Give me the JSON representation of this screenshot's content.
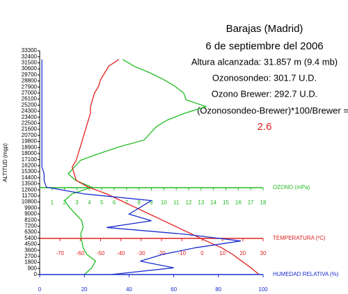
{
  "chart_data": {
    "type": "line",
    "title": "Barajas (Madrid)",
    "subtitle": "6 de septiembre del 2006",
    "annotations": [
      "Altura alcanzada: 31.857 m (9.4 mb)",
      "Ozonosondeo: 301.7  U.D.",
      "Ozono Brewer:   292.7  U.D.",
      "(Ozonosondeo-Brewer)*100/Brewer =",
      "2.6"
    ],
    "ylabel": "ALTITUD (mgp)",
    "ylim": [
      0,
      33300
    ],
    "yticks": [
      0,
      900,
      1800,
      2700,
      3600,
      4500,
      5400,
      6300,
      7200,
      8100,
      9000,
      9900,
      10800,
      11700,
      12600,
      13500,
      14400,
      15300,
      16200,
      17100,
      18000,
      18900,
      19800,
      20700,
      21600,
      22500,
      23400,
      24300,
      25200,
      26100,
      27000,
      27900,
      28800,
      29700,
      30600,
      31500,
      32400,
      33300
    ],
    "y": [
      0,
      1000,
      2000,
      3000,
      4000,
      5000,
      6000,
      7000,
      8000,
      9000,
      10000,
      11000,
      12000,
      13000,
      14000,
      15000,
      16000,
      17000,
      18000,
      19000,
      20000,
      21000,
      22000,
      23000,
      24000,
      25000,
      26000,
      27000,
      28000,
      29000,
      30000,
      31000,
      32000
    ],
    "series": [
      {
        "name": "OZONO (mPa)",
        "color": "#22bb22",
        "xlim": [
          0,
          18
        ],
        "xticks": [
          1,
          2,
          3,
          4,
          5,
          6,
          7,
          8,
          9,
          10,
          11,
          12,
          13,
          14,
          15,
          16,
          17,
          18
        ],
        "values": [
          3.6,
          4.2,
          4.5,
          3.8,
          3.5,
          3.4,
          3.3,
          3.5,
          3.4,
          2.9,
          2.4,
          2.0,
          2.6,
          4.2,
          2.9,
          2.3,
          2.8,
          3.3,
          4.8,
          6.4,
          8.4,
          8.9,
          9.4,
          10.3,
          11.7,
          13.4,
          11.8,
          11.6,
          10.9,
          10.0,
          8.9,
          7.6,
          6.7
        ]
      },
      {
        "name": "TEMPERATURA (ºC)",
        "color": "#e02020",
        "xlim": [
          -80,
          30
        ],
        "xticks": [
          -70,
          -60,
          -50,
          -40,
          -30,
          -20,
          -10,
          0,
          10,
          20,
          30
        ],
        "values": [
          28,
          24,
          19.5,
          15,
          9.5,
          2,
          -5,
          -12,
          -19,
          -26,
          -33,
          -40,
          -47,
          -56,
          -62,
          -63,
          -64,
          -62,
          -61,
          -60,
          -59,
          -58,
          -57,
          -56,
          -55,
          -55,
          -54,
          -53,
          -51,
          -50,
          -48,
          -46,
          -41
        ]
      },
      {
        "name": "HUMEDAD RELATIVA (%)",
        "color": "#1a2ecc",
        "xlim": [
          0,
          100
        ],
        "xticks": [
          0,
          20,
          40,
          60,
          80,
          100
        ],
        "values": [
          32,
          60,
          45,
          55,
          70,
          90,
          65,
          30,
          50,
          40,
          45,
          50,
          20,
          3,
          2,
          2,
          1,
          1,
          1,
          1,
          1,
          1,
          1,
          1,
          1,
          1,
          1,
          1,
          1,
          1,
          1,
          1,
          1
        ]
      }
    ]
  }
}
